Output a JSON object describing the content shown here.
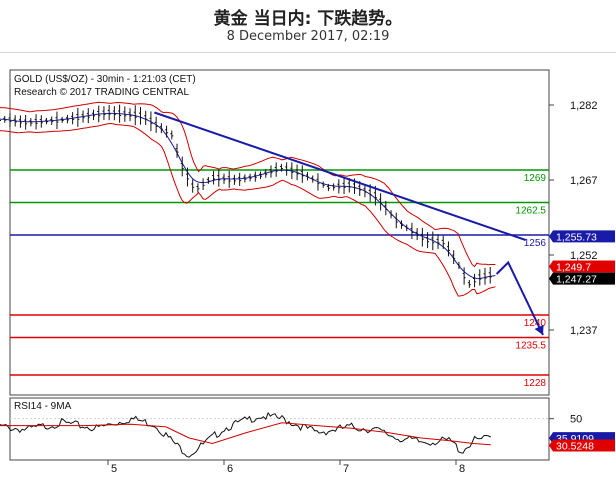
{
  "header": {
    "title": "黄金 当日内: 下跌趋势。",
    "subtitle": "8 December 2017, 02:19"
  },
  "chart_data": [
    {
      "type": "line",
      "panel": "price",
      "info_line_1": "GOLD (US$/OZ) - 30min - 1:21:03 (CET)",
      "info_line_2": "Research © 2017 TRADING CENTRAL",
      "x_ticks": [
        "5",
        "6",
        "7",
        "8"
      ],
      "y_ticks": [
        "1,282",
        "1,267",
        "1,252",
        "1,237"
      ],
      "ylim": [
        1224,
        1289
      ],
      "price_path": [
        [
          0.0,
          1279.5
        ],
        [
          0.3,
          1278.5
        ],
        [
          0.6,
          1279.0
        ],
        [
          1.0,
          1280.5
        ],
        [
          1.3,
          1279.8
        ],
        [
          1.55,
          1276.0
        ],
        [
          1.65,
          1269.0
        ],
        [
          1.75,
          1265.0
        ],
        [
          1.9,
          1267.5
        ],
        [
          2.1,
          1267.0
        ],
        [
          2.3,
          1267.8
        ],
        [
          2.5,
          1269.5
        ],
        [
          2.7,
          1268.0
        ],
        [
          2.9,
          1265.5
        ],
        [
          3.1,
          1266.0
        ],
        [
          3.3,
          1264.0
        ],
        [
          3.5,
          1258.5
        ],
        [
          3.75,
          1255.0
        ],
        [
          3.9,
          1254.5
        ],
        [
          4.05,
          1249.0
        ],
        [
          4.1,
          1246.0
        ],
        [
          4.2,
          1247.5
        ],
        [
          4.35,
          1248.2
        ]
      ],
      "horizontal_levels": [
        {
          "label": "1269",
          "value": 1269,
          "color": "#009900"
        },
        {
          "label": "1262.5",
          "value": 1262.5,
          "color": "#009900"
        },
        {
          "label": "1256",
          "value": 1256,
          "color": "#1a1aa8"
        },
        {
          "label": "1240",
          "value": 1240,
          "color": "#e00000"
        },
        {
          "label": "1235.5",
          "value": 1235.5,
          "color": "#e00000"
        },
        {
          "label": "1228",
          "value": 1228,
          "color": "#e00000"
        }
      ],
      "price_tags": [
        {
          "label": "1,255.73",
          "value": 1255.73,
          "color": "#1a1aa8"
        },
        {
          "label": "1,249.7",
          "value": 1249.7,
          "color": "#e00000"
        },
        {
          "label": "1,247.27",
          "value": 1247.27,
          "color": "#000000"
        }
      ],
      "trendline": {
        "from": [
          1.4,
          1280.5
        ],
        "to": [
          4.6,
          1255.0
        ],
        "color": "#1a1aa8"
      },
      "projection": {
        "path": [
          [
            4.35,
            1248.2
          ],
          [
            4.45,
            1250.5
          ],
          [
            4.75,
            1236.0
          ]
        ],
        "color": "#1a1aa8"
      }
    },
    {
      "type": "line",
      "panel": "RSI",
      "label": "RSI14 - 9MA",
      "y_ticks": [
        "50"
      ],
      "ylim": [
        20,
        65
      ],
      "rsi_path": [
        [
          0.0,
          45
        ],
        [
          0.3,
          42
        ],
        [
          0.6,
          47
        ],
        [
          0.9,
          43
        ],
        [
          1.2,
          50
        ],
        [
          1.4,
          46
        ],
        [
          1.6,
          30
        ],
        [
          1.7,
          24
        ],
        [
          1.85,
          33
        ],
        [
          2.0,
          43
        ],
        [
          2.3,
          52
        ],
        [
          2.5,
          50
        ],
        [
          2.8,
          40
        ],
        [
          3.1,
          44
        ],
        [
          3.3,
          42
        ],
        [
          3.5,
          36
        ],
        [
          3.7,
          33
        ],
        [
          3.95,
          34
        ],
        [
          4.05,
          26
        ],
        [
          4.15,
          34
        ],
        [
          4.3,
          36
        ]
      ],
      "ma_path": [
        [
          0.0,
          45
        ],
        [
          0.4,
          45
        ],
        [
          0.8,
          45
        ],
        [
          1.2,
          46
        ],
        [
          1.5,
          44
        ],
        [
          1.7,
          36
        ],
        [
          1.9,
          32
        ],
        [
          2.2,
          40
        ],
        [
          2.5,
          47
        ],
        [
          2.8,
          45
        ],
        [
          3.1,
          43
        ],
        [
          3.4,
          40
        ],
        [
          3.7,
          36
        ],
        [
          3.95,
          34
        ],
        [
          4.15,
          32
        ],
        [
          4.3,
          31
        ]
      ],
      "value_tags": [
        {
          "label": "35.9109",
          "value": 35.9,
          "color": "#1a1aa8"
        },
        {
          "label": "30.5248",
          "value": 30.5,
          "color": "#e00000"
        }
      ]
    }
  ]
}
